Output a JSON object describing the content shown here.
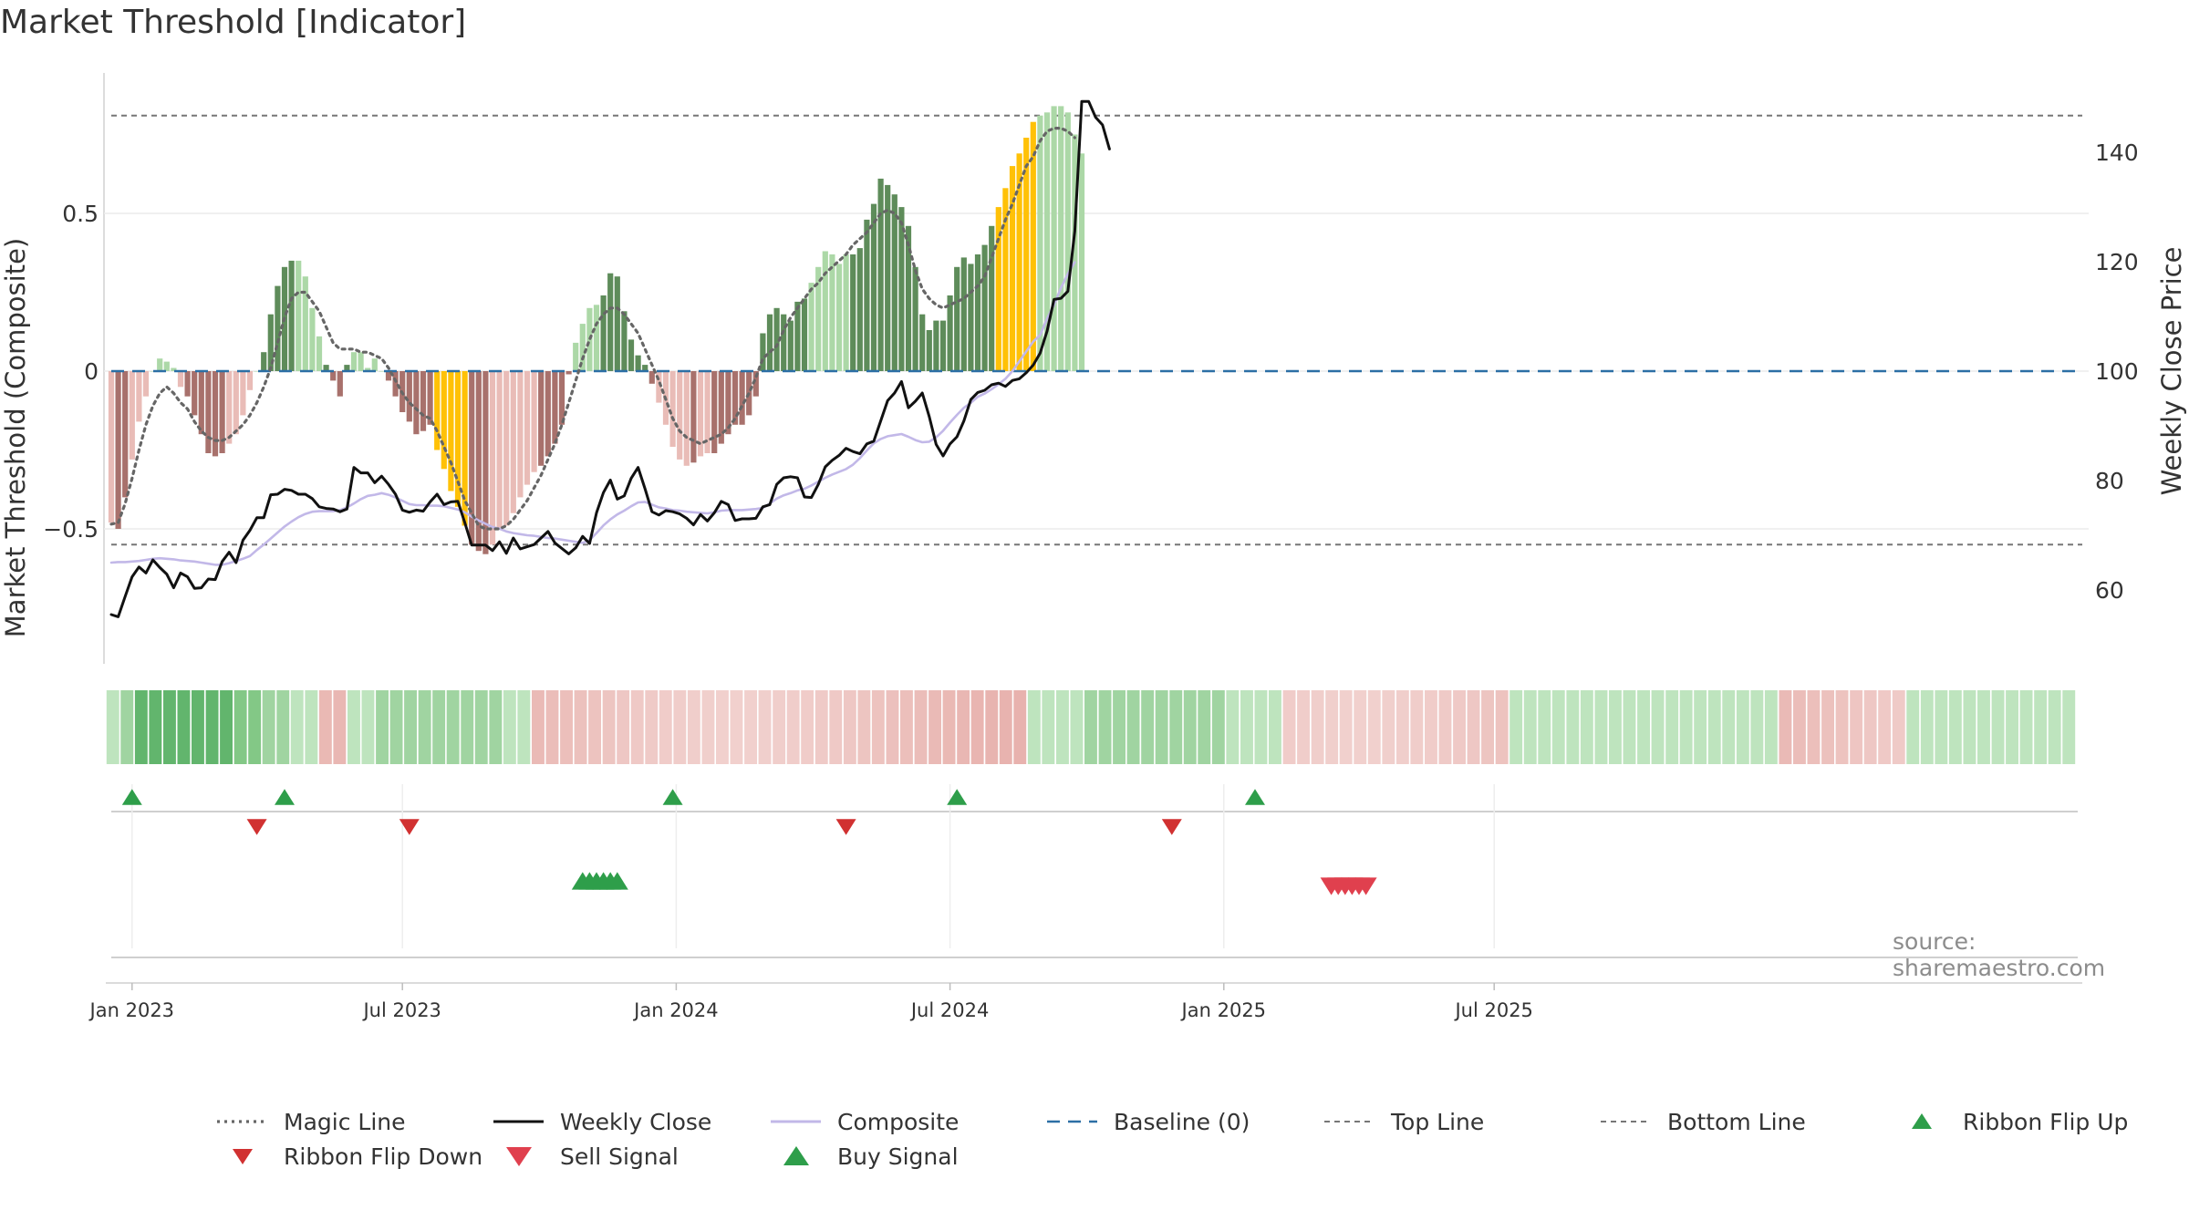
{
  "title": "Market Threshold [Indicator]",
  "source": "source: sharemaestro.com",
  "colors": {
    "up_strong": "#5e8c5a",
    "up_weak": "#acd8a7",
    "down_strong": "#a8716c",
    "down_weak": "#e9bcb7",
    "extreme": "#ffc107",
    "weekly_close": "#111111",
    "composite": "#c2b8e8",
    "magic_line": "#666666",
    "baseline": "#2c6fa5",
    "threshold": "#777777",
    "flip_up": "#2e9e4a",
    "flip_down": "#d13131",
    "sell": "#e0404e",
    "buy": "#2e9e4a"
  },
  "chart_data": {
    "type": "bar",
    "title": "Market Threshold [Indicator]",
    "y_left_label": "Market Threshold (Composite)",
    "y_right_label": "Weekly Close Price",
    "y_left_ticks": [
      0.5,
      0,
      -0.5
    ],
    "y_left_tick_labels": [
      "0.5",
      "0",
      "−0.5"
    ],
    "y_left_range": [
      -0.93,
      0.95
    ],
    "y_right_ticks": [
      60,
      80,
      100,
      120,
      140
    ],
    "y_right_tick_labels": [
      "60",
      "80",
      "100",
      "120",
      "140"
    ],
    "y_right_range": [
      51.5,
      152.5
    ],
    "x_ticks": [
      "Jan 2023",
      "Jul 2023",
      "Jan 2024",
      "Jul 2024",
      "Jan 2025",
      "Jul 2025"
    ],
    "top_line": 0.81,
    "bottom_line": -0.55,
    "baseline": 0,
    "composite_bars": [
      -0.48,
      -0.5,
      -0.4,
      -0.28,
      -0.16,
      -0.08,
      0.0,
      0.04,
      0.03,
      0.01,
      -0.05,
      -0.08,
      -0.14,
      -0.2,
      -0.26,
      -0.27,
      -0.26,
      -0.23,
      -0.2,
      -0.14,
      -0.06,
      0.0,
      0.06,
      0.18,
      0.27,
      0.33,
      0.35,
      0.35,
      0.3,
      0.2,
      0.11,
      0.02,
      -0.03,
      -0.08,
      0.02,
      0.06,
      0.06,
      0.01,
      0.04,
      0.0,
      -0.03,
      -0.08,
      -0.13,
      -0.16,
      -0.2,
      -0.19,
      -0.17,
      -0.25,
      -0.31,
      -0.38,
      -0.43,
      -0.49,
      -0.55,
      -0.57,
      -0.58,
      -0.55,
      -0.5,
      -0.49,
      -0.45,
      -0.4,
      -0.36,
      -0.32,
      -0.3,
      -0.27,
      -0.23,
      -0.17,
      -0.01,
      0.09,
      0.15,
      0.2,
      0.21,
      0.24,
      0.31,
      0.3,
      0.19,
      0.1,
      0.05,
      0.02,
      -0.04,
      -0.1,
      -0.17,
      -0.24,
      -0.28,
      -0.3,
      -0.29,
      -0.27,
      -0.26,
      -0.26,
      -0.23,
      -0.2,
      -0.17,
      -0.17,
      -0.14,
      -0.08,
      0.12,
      0.18,
      0.2,
      0.18,
      0.16,
      0.22,
      0.23,
      0.28,
      0.33,
      0.38,
      0.37,
      0.34,
      0.37,
      0.37,
      0.39,
      0.48,
      0.53,
      0.61,
      0.59,
      0.56,
      0.52,
      0.46,
      0.33,
      0.18,
      0.13,
      0.16,
      0.16,
      0.24,
      0.33,
      0.36,
      0.34,
      0.37,
      0.4,
      0.46,
      0.52,
      0.58,
      0.65,
      0.69,
      0.74,
      0.79,
      0.81,
      0.82,
      0.84,
      0.84,
      0.82,
      0.75,
      0.69
    ],
    "bar_style_codes": "wsswwwwwwwwsssssswwwwwssssswwwwsssswwwwwsssssssxxxxxssswwwwwwwssssswwwwsssssssswwwwwswwsssssssssssssswwwwwwsssssssssssssssssssssxxxxxxww",
    "weekly_close": [
      55.5,
      55.1,
      58.8,
      62.4,
      64.2,
      63.1,
      65.5,
      64.1,
      62.9,
      60.4,
      63.1,
      62.4,
      60.3,
      60.4,
      62,
      61.9,
      65.2,
      66.9,
      65,
      69.1,
      70.9,
      73.2,
      73.2,
      77.4,
      77.5,
      78.4,
      78.2,
      77.5,
      77.5,
      76.7,
      75.2,
      74.9,
      74.8,
      74.3,
      74.8,
      82.4,
      81.4,
      81.4,
      79.6,
      80.8,
      79.3,
      77.5,
      74.6,
      74.2,
      74.6,
      74.4,
      76.1,
      77.5,
      75.6,
      76.1,
      76.2,
      72.3,
      68.2,
      68.2,
      68.2,
      67.2,
      68.8,
      66.7,
      69.5,
      67.5,
      67.9,
      68.3,
      69.5,
      70.7,
      68.6,
      67.6,
      66.6,
      67.7,
      69.8,
      68.5,
      74.1,
      77.8,
      80.1,
      76.6,
      77.2,
      80.4,
      82.4,
      78.5,
      74.3,
      73.7,
      74.5,
      74.3,
      73.9,
      73.1,
      71.9,
      73.8,
      72.6,
      74.1,
      76.2,
      75.6,
      72.7,
      73,
      73,
      73.1,
      75.2,
      75.6,
      79.3,
      80.5,
      80.7,
      80.5,
      77,
      76.9,
      79.3,
      82.5,
      83.7,
      84.6,
      85.9,
      85.3,
      84.9,
      86.7,
      87.2,
      90.9,
      94.6,
      96,
      98.1,
      93.3,
      94.5,
      96,
      91.7,
      86.6,
      84.5,
      86.7,
      88,
      90.9,
      94.8,
      96.1,
      96.5,
      97.5,
      97.8,
      97.2,
      98.3,
      98.6,
      99.7,
      101.1,
      103.3,
      107.3,
      113.1,
      113.3,
      114.6,
      125.6,
      149.3,
      149.3,
      146.4,
      145,
      140.6
    ],
    "composite_line": [
      65,
      65.1,
      65.1,
      65.2,
      65.3,
      65.5,
      65.7,
      65.8,
      65.7,
      65.6,
      65.4,
      65.3,
      65.2,
      65,
      64.8,
      64.6,
      64.6,
      64.9,
      65.3,
      65.7,
      66.2,
      67.3,
      68.3,
      69.4,
      70.5,
      71.6,
      72.5,
      73.3,
      73.9,
      74.3,
      74.4,
      74.4,
      74.4,
      74.6,
      75.1,
      75.8,
      76.6,
      77.2,
      77.4,
      77.7,
      77.4,
      76.9,
      76.3,
      75.7,
      75.5,
      75.5,
      75.4,
      75.4,
      75.3,
      75,
      74.7,
      74.2,
      73.4,
      72.7,
      72.1,
      71.5,
      71.2,
      70.7,
      70.4,
      70.2,
      70,
      69.9,
      69.7,
      69.5,
      69.4,
      69.2,
      69,
      68.8,
      68.6,
      69.1,
      70.4,
      71.8,
      72.9,
      73.8,
      74.5,
      75.3,
      76,
      76.1,
      75.6,
      75.1,
      74.9,
      74.6,
      74.5,
      74.3,
      74.2,
      74.1,
      74,
      74.2,
      74.5,
      74.6,
      74.6,
      74.6,
      74.7,
      74.8,
      75,
      75.8,
      76.7,
      77.3,
      77.7,
      78.2,
      78.5,
      79.1,
      79.8,
      80.5,
      81.1,
      81.6,
      82.1,
      82.9,
      84.1,
      85.5,
      86.8,
      87.6,
      88.1,
      88.3,
      88.5,
      88,
      87.4,
      87,
      87.1,
      87.9,
      89.1,
      90.6,
      92,
      93.3,
      94.2,
      95.3,
      95.9,
      96.7,
      97.6,
      98.6,
      100,
      101.8,
      103.6,
      105.4,
      106.6,
      109.6,
      112.1,
      115.2,
      117.8,
      119.9
    ],
    "magic_line": [
      -0.485,
      -0.48,
      -0.42,
      -0.34,
      -0.25,
      -0.17,
      -0.11,
      -0.07,
      -0.05,
      -0.07,
      -0.1,
      -0.12,
      -0.16,
      -0.19,
      -0.21,
      -0.22,
      -0.22,
      -0.21,
      -0.19,
      -0.17,
      -0.14,
      -0.1,
      -0.05,
      0.01,
      0.09,
      0.17,
      0.23,
      0.25,
      0.25,
      0.22,
      0.19,
      0.14,
      0.09,
      0.07,
      0.07,
      0.07,
      0.06,
      0.06,
      0.05,
      0.04,
      0.01,
      -0.03,
      -0.07,
      -0.1,
      -0.12,
      -0.14,
      -0.15,
      -0.19,
      -0.24,
      -0.29,
      -0.35,
      -0.41,
      -0.45,
      -0.49,
      -0.5,
      -0.5,
      -0.5,
      -0.49,
      -0.47,
      -0.44,
      -0.41,
      -0.37,
      -0.33,
      -0.28,
      -0.23,
      -0.17,
      -0.1,
      -0.03,
      0.04,
      0.1,
      0.15,
      0.18,
      0.2,
      0.2,
      0.18,
      0.15,
      0.12,
      0.07,
      0.02,
      -0.03,
      -0.09,
      -0.15,
      -0.19,
      -0.21,
      -0.22,
      -0.23,
      -0.22,
      -0.21,
      -0.2,
      -0.18,
      -0.15,
      -0.11,
      -0.07,
      -0.02,
      0.04,
      0.06,
      0.08,
      0.13,
      0.17,
      0.2,
      0.23,
      0.26,
      0.28,
      0.31,
      0.33,
      0.35,
      0.37,
      0.4,
      0.42,
      0.44,
      0.47,
      0.5,
      0.51,
      0.5,
      0.47,
      0.4,
      0.32,
      0.26,
      0.23,
      0.21,
      0.2,
      0.21,
      0.22,
      0.23,
      0.25,
      0.27,
      0.3,
      0.36,
      0.42,
      0.48,
      0.53,
      0.59,
      0.65,
      0.68,
      0.73,
      0.76,
      0.77,
      0.77,
      0.76,
      0.74
    ],
    "ribbon_codes": "2355555554433221122333333333221111111111111111111111111111111111122223333333333222211111111111111112222222222222222222111111111222222222222",
    "ribbon_flip_up_index": [
      3,
      25,
      81,
      122,
      165
    ],
    "ribbon_flip_down_index": [
      21,
      43,
      106,
      153
    ],
    "buy_signal_index": [
      68,
      69,
      70,
      71,
      72,
      73
    ],
    "sell_signal_index": [
      176,
      177,
      178,
      179,
      180,
      181
    ],
    "legend": [
      {
        "label": "Magic Line",
        "marker": "dotted"
      },
      {
        "label": "Weekly Close",
        "marker": "line"
      },
      {
        "label": "Composite",
        "marker": "line"
      },
      {
        "label": "Baseline (0)",
        "marker": "dashed"
      },
      {
        "label": "Top Line",
        "marker": "dashed"
      },
      {
        "label": "Bottom Line",
        "marker": "dashed"
      },
      {
        "label": "Ribbon Flip Up",
        "marker": "triangle-up"
      },
      {
        "label": "Ribbon Flip Down",
        "marker": "triangle-down"
      },
      {
        "label": "Sell Signal",
        "marker": "triangle-down"
      },
      {
        "label": "Buy Signal",
        "marker": "triangle-up"
      }
    ],
    "legend_position": "bottom",
    "grid": true
  }
}
